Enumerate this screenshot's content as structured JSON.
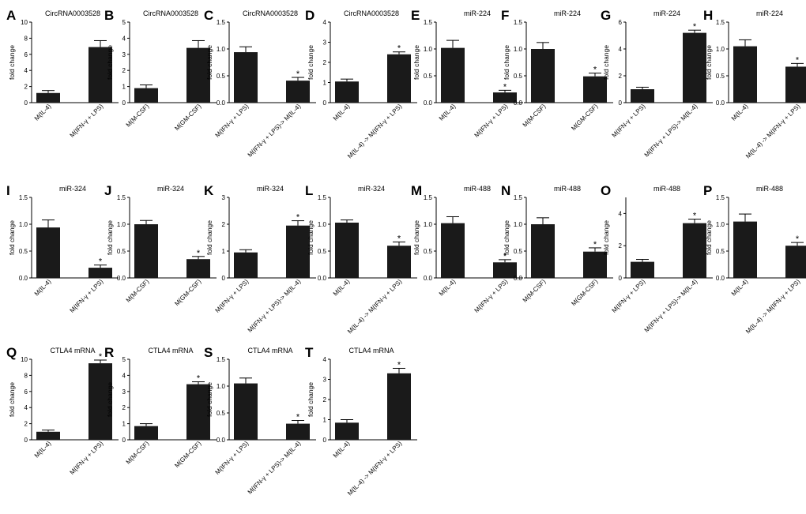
{
  "figure": {
    "colors": {
      "bar": "#1a1a1a",
      "axis": "#000000",
      "text": "#000000"
    },
    "significance_marker": "*"
  },
  "chart_data": [
    {
      "type": "bar",
      "panel": "A",
      "title": "CircRNA0003528",
      "ylabel": "fold change",
      "ylim": [
        0,
        10
      ],
      "yticks": [
        0,
        2,
        4,
        6,
        8,
        10
      ],
      "categories": [
        "M(IL-4)",
        "M(IFN-γ + LPS)"
      ],
      "values": [
        1.2,
        6.9
      ],
      "errors": [
        0.3,
        0.8
      ],
      "significant": [
        false,
        false
      ]
    },
    {
      "type": "bar",
      "panel": "B",
      "title": "CircRNA0003528",
      "ylabel": "fold change",
      "ylim": [
        0,
        5
      ],
      "yticks": [
        0,
        1,
        2,
        3,
        4,
        5
      ],
      "categories": [
        "M(M-CSF)",
        "M(GM-CSF)"
      ],
      "values": [
        0.9,
        3.4
      ],
      "errors": [
        0.2,
        0.45
      ],
      "significant": [
        false,
        false
      ]
    },
    {
      "type": "bar",
      "panel": "C",
      "title": "CircRNA0003528",
      "ylabel": "fold change",
      "ylim": [
        0,
        1.5
      ],
      "yticks": [
        0.0,
        0.5,
        1.0,
        1.5
      ],
      "categories": [
        "M(IFN-γ + LPS)",
        "M(IFN-γ + LPS)-> M(IL-4)"
      ],
      "values": [
        0.94,
        0.41
      ],
      "errors": [
        0.1,
        0.06
      ],
      "significant": [
        false,
        true
      ]
    },
    {
      "type": "bar",
      "panel": "D",
      "title": "CircRNA0003528",
      "ylabel": "fold change",
      "ylim": [
        0,
        4
      ],
      "yticks": [
        0,
        1,
        2,
        3,
        4
      ],
      "categories": [
        "M(IL-4)",
        "M(IL-4) -> M(IFN-γ + LPS)"
      ],
      "values": [
        1.05,
        2.4
      ],
      "errors": [
        0.12,
        0.12
      ],
      "significant": [
        false,
        true
      ]
    },
    {
      "type": "bar",
      "panel": "E",
      "title": "miR-224",
      "ylabel": "fold change",
      "ylim": [
        0,
        1.5
      ],
      "yticks": [
        0.0,
        0.5,
        1.0,
        1.5
      ],
      "categories": [
        "M(IL-4)",
        "M(IFN-γ + LPS)"
      ],
      "values": [
        1.02,
        0.19
      ],
      "errors": [
        0.14,
        0.04
      ],
      "significant": [
        false,
        true
      ]
    },
    {
      "type": "bar",
      "panel": "F",
      "title": "miR-224",
      "ylabel": "fold change",
      "ylim": [
        0,
        1.5
      ],
      "yticks": [
        0.0,
        0.5,
        1.0,
        1.5
      ],
      "categories": [
        "M(M-CSF)",
        "M(GM-CSF)"
      ],
      "values": [
        1.0,
        0.49
      ],
      "errors": [
        0.12,
        0.06
      ],
      "significant": [
        false,
        true
      ]
    },
    {
      "type": "bar",
      "panel": "G",
      "title": "miR-224",
      "ylabel": "fold change",
      "ylim": [
        0,
        6
      ],
      "yticks": [
        0,
        2,
        4,
        6
      ],
      "categories": [
        "M(IFN-γ + LPS)",
        "M(IFN-γ + LPS)-> M(IL-4)"
      ],
      "values": [
        1.0,
        5.2
      ],
      "errors": [
        0.15,
        0.2
      ],
      "significant": [
        false,
        true
      ]
    },
    {
      "type": "bar",
      "panel": "H",
      "title": "miR-224",
      "ylabel": "fold change",
      "ylim": [
        0,
        1.5
      ],
      "yticks": [
        0.0,
        0.5,
        1.0,
        1.5
      ],
      "categories": [
        "M(IL-4)",
        "M(IL-4) -> M(IFN-γ + LPS)"
      ],
      "values": [
        1.05,
        0.67
      ],
      "errors": [
        0.12,
        0.06
      ],
      "significant": [
        false,
        true
      ]
    },
    {
      "type": "bar",
      "panel": "I",
      "title": "miR-324",
      "ylabel": "fold change",
      "ylim": [
        0,
        1.5
      ],
      "yticks": [
        0.0,
        0.5,
        1.0,
        1.5
      ],
      "categories": [
        "M(IL-4)",
        "M(IFN-γ + LPS)"
      ],
      "values": [
        0.94,
        0.19
      ],
      "errors": [
        0.14,
        0.05
      ],
      "significant": [
        false,
        true
      ]
    },
    {
      "type": "bar",
      "panel": "J",
      "title": "miR-324",
      "ylabel": "fold change",
      "ylim": [
        0,
        1.5
      ],
      "yticks": [
        0.0,
        0.5,
        1.0,
        1.5
      ],
      "categories": [
        "M(M-CSF)",
        "M(GM-CSF)"
      ],
      "values": [
        1.0,
        0.35
      ],
      "errors": [
        0.07,
        0.05
      ],
      "significant": [
        false,
        true
      ]
    },
    {
      "type": "bar",
      "panel": "K",
      "title": "miR-324",
      "ylabel": "fold change",
      "ylim": [
        0,
        3
      ],
      "yticks": [
        0,
        1,
        2,
        3
      ],
      "categories": [
        "M(IFN-γ + LPS)",
        "M(IFN-γ + LPS)-> M(IL-4)"
      ],
      "values": [
        0.95,
        1.95
      ],
      "errors": [
        0.1,
        0.18
      ],
      "significant": [
        false,
        true
      ]
    },
    {
      "type": "bar",
      "panel": "L",
      "title": "miR-324",
      "ylabel": "fold change",
      "ylim": [
        0,
        1.5
      ],
      "yticks": [
        0.0,
        0.5,
        1.0,
        1.5
      ],
      "categories": [
        "M(IL-4)",
        "M(IL-4) -> M(IFN-γ + LPS)"
      ],
      "values": [
        1.03,
        0.6
      ],
      "errors": [
        0.05,
        0.07
      ],
      "significant": [
        false,
        true
      ]
    },
    {
      "type": "bar",
      "panel": "M",
      "title": "miR-488",
      "ylabel": "fold change",
      "ylim": [
        0,
        1.5
      ],
      "yticks": [
        0.0,
        0.5,
        1.0,
        1.5
      ],
      "categories": [
        "M(IL-4)",
        "M(IFN-γ + LPS)"
      ],
      "values": [
        1.02,
        0.29
      ],
      "errors": [
        0.12,
        0.05
      ],
      "significant": [
        false,
        true
      ]
    },
    {
      "type": "bar",
      "panel": "N",
      "title": "miR-488",
      "ylabel": "fold change",
      "ylim": [
        0,
        1.5
      ],
      "yticks": [
        0.0,
        0.5,
        1.0,
        1.5
      ],
      "categories": [
        "M(M-CSF)",
        "M(GM-CSF)"
      ],
      "values": [
        1.0,
        0.49
      ],
      "errors": [
        0.12,
        0.07
      ],
      "significant": [
        false,
        true
      ]
    },
    {
      "type": "bar",
      "panel": "O",
      "title": "miR-488",
      "ylabel": "fold change",
      "ylim": [
        0,
        5
      ],
      "yticks": [
        0,
        2,
        4
      ],
      "categories": [
        "M(IFN-γ + LPS)",
        "M(IFN-γ + LPS)-> M(IL-4)"
      ],
      "values": [
        1.0,
        3.4
      ],
      "errors": [
        0.15,
        0.25
      ],
      "significant": [
        false,
        true
      ]
    },
    {
      "type": "bar",
      "panel": "P",
      "title": "miR-488",
      "ylabel": "fold change",
      "ylim": [
        0,
        1.5
      ],
      "yticks": [
        0.0,
        0.5,
        1.0,
        1.5
      ],
      "categories": [
        "M(IL-4)",
        "M(IL-4) -> M(IFN-γ + LPS)"
      ],
      "values": [
        1.05,
        0.6
      ],
      "errors": [
        0.14,
        0.06
      ],
      "significant": [
        false,
        true
      ]
    },
    {
      "type": "bar",
      "panel": "Q",
      "title": "CTLA4 mRNA",
      "ylabel": "fold change",
      "ylim": [
        0,
        10
      ],
      "yticks": [
        0,
        2,
        4,
        6,
        8,
        10
      ],
      "categories": [
        "M(IL-4)",
        "M(IFN-γ + LPS)"
      ],
      "values": [
        1.0,
        9.5
      ],
      "errors": [
        0.2,
        0.4
      ],
      "significant": [
        false,
        true
      ]
    },
    {
      "type": "bar",
      "panel": "R",
      "title": "CTLA4 mRNA",
      "ylabel": "fold change",
      "ylim": [
        0,
        5
      ],
      "yticks": [
        0,
        1,
        2,
        3,
        4,
        5
      ],
      "categories": [
        "M(M-CSF)",
        "M(GM-CSF)"
      ],
      "values": [
        0.85,
        3.45
      ],
      "errors": [
        0.15,
        0.15
      ],
      "significant": [
        false,
        true
      ]
    },
    {
      "type": "bar",
      "panel": "S",
      "title": "CTLA4 mRNA",
      "ylabel": "fold change",
      "ylim": [
        0,
        1.5
      ],
      "yticks": [
        0.0,
        0.5,
        1.0,
        1.5
      ],
      "categories": [
        "M(IFN-γ + LPS)",
        "M(IFN-γ + LPS)-> M(IL-4)"
      ],
      "values": [
        1.05,
        0.3
      ],
      "errors": [
        0.1,
        0.06
      ],
      "significant": [
        false,
        true
      ]
    },
    {
      "type": "bar",
      "panel": "T",
      "title": "CTLA4 mRNA",
      "ylabel": "fold change",
      "ylim": [
        0,
        4
      ],
      "yticks": [
        0,
        1,
        2,
        3,
        4
      ],
      "categories": [
        "M(IL-4)",
        "M(IL-4) -> M(IFN-γ + LPS)"
      ],
      "values": [
        0.85,
        3.3
      ],
      "errors": [
        0.15,
        0.25
      ],
      "significant": [
        false,
        true
      ]
    }
  ]
}
